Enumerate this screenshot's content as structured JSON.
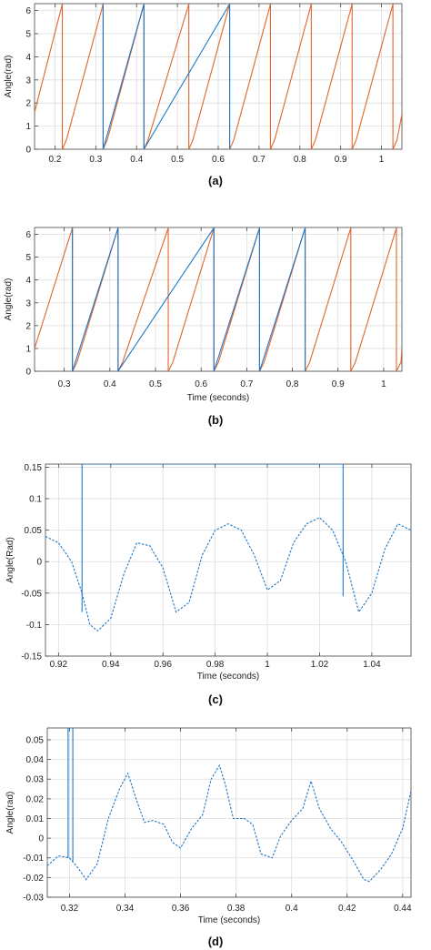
{
  "chart_data": [
    {
      "type": "line",
      "caption": "(a)",
      "xlabel": "",
      "ylabel": "Angle(rad)",
      "xlim": [
        0.15,
        1.05
      ],
      "ylim": [
        0,
        6.3
      ],
      "xticks": [
        0.2,
        0.3,
        0.4,
        0.5,
        0.6,
        0.7,
        0.8,
        0.9,
        1
      ],
      "xtick_labels": [
        "0.2",
        "0.3",
        "0.4",
        "0.5",
        "0.6",
        "0.7",
        "0.8",
        "0.9",
        "1"
      ],
      "yticks": [
        0,
        1,
        2,
        3,
        4,
        5,
        6
      ],
      "ytick_labels": [
        "0",
        "1",
        "2",
        "3",
        "4",
        "5",
        "6"
      ],
      "grid": true,
      "series": [
        {
          "color": "#e0652a",
          "style": "solid",
          "x": [
            0.15,
            0.218,
            0.218,
            0.228,
            0.228,
            0.318,
            0.318,
            0.328,
            0.328,
            0.418,
            0.418,
            0.428,
            0.428,
            0.528,
            0.528,
            0.538,
            0.538,
            0.628,
            0.628,
            0.638,
            0.638,
            0.728,
            0.728,
            0.738,
            0.738,
            0.828,
            0.828,
            0.838,
            0.838,
            0.928,
            0.928,
            0.938,
            0.938,
            1.028,
            1.028,
            1.038,
            1.038,
            1.05
          ],
          "y": [
            1.6,
            6.28,
            0,
            0.4,
            0.4,
            6.28,
            0,
            0.4,
            0.4,
            6.28,
            0,
            0.4,
            0.4,
            6.28,
            0,
            0.4,
            0.4,
            6.28,
            0,
            0.4,
            0.4,
            6.28,
            0,
            0.4,
            0.4,
            6.28,
            0,
            0.4,
            0.4,
            6.28,
            0,
            0.4,
            0.4,
            6.28,
            0,
            0.4,
            0.4,
            1.5
          ]
        },
        {
          "color": "#1f78c8",
          "style": "solid",
          "x": [
            0.318,
            0.318,
            0.418,
            0.418,
            0.628,
            0.628
          ],
          "y": [
            6.28,
            0,
            6.28,
            0,
            6.28,
            0
          ]
        }
      ]
    },
    {
      "type": "line",
      "caption": "(b)",
      "xlabel": "Time (seconds)",
      "ylabel": "Angle(rad)",
      "xlim": [
        0.235,
        1.04
      ],
      "ylim": [
        0,
        6.3
      ],
      "xticks": [
        0.3,
        0.4,
        0.5,
        0.6,
        0.7,
        0.8,
        0.9,
        1
      ],
      "xtick_labels": [
        "0.3",
        "0.4",
        "0.5",
        "0.6",
        "0.7",
        "0.8",
        "0.9",
        "1"
      ],
      "yticks": [
        0,
        1,
        2,
        3,
        4,
        5,
        6
      ],
      "ytick_labels": [
        "0",
        "1",
        "2",
        "3",
        "4",
        "5",
        "6"
      ],
      "grid": true,
      "series": [
        {
          "color": "#e0652a",
          "style": "solid",
          "x": [
            0.235,
            0.318,
            0.318,
            0.328,
            0.328,
            0.418,
            0.418,
            0.428,
            0.428,
            0.528,
            0.528,
            0.538,
            0.538,
            0.628,
            0.628,
            0.638,
            0.638,
            0.728,
            0.728,
            0.738,
            0.738,
            0.828,
            0.828,
            0.838,
            0.838,
            0.928,
            0.928,
            0.938,
            0.938,
            1.028,
            1.028,
            1.038,
            1.038,
            1.04
          ],
          "y": [
            1.0,
            6.28,
            0,
            0.4,
            0.4,
            6.28,
            0,
            0.4,
            0.4,
            6.28,
            0,
            0.4,
            0.4,
            6.28,
            0,
            0.4,
            0.4,
            6.28,
            0,
            0.4,
            0.4,
            6.28,
            0,
            0.4,
            0.4,
            6.28,
            0,
            0.4,
            0.4,
            6.28,
            0,
            0.4,
            0.4,
            1.0
          ]
        },
        {
          "color": "#1f78c8",
          "style": "solid",
          "x": [
            0.318,
            0.318,
            0.418,
            0.418,
            0.628,
            0.628,
            0.728,
            0.728,
            0.828,
            0.828
          ],
          "y": [
            6.28,
            0,
            6.28,
            0,
            6.28,
            0,
            6.28,
            0,
            6.28,
            0
          ]
        }
      ]
    },
    {
      "type": "line",
      "caption": "(c)",
      "xlabel": "Time (seconds)",
      "ylabel": "Angle(Rad)",
      "xlim": [
        0.915,
        1.055
      ],
      "ylim": [
        -0.15,
        0.155
      ],
      "xticks": [
        0.92,
        0.94,
        0.96,
        0.98,
        1,
        1.02,
        1.04
      ],
      "xtick_labels": [
        "0.92",
        "0.94",
        "0.96",
        "0.98",
        "1",
        "1.02",
        "1.04"
      ],
      "yticks": [
        -0.15,
        -0.1,
        -0.05,
        0,
        0.05,
        0.1,
        0.15
      ],
      "ytick_labels": [
        "-0.15",
        "-0.1",
        "-0.05",
        "0",
        "0.05",
        "0.1",
        "0.15"
      ],
      "grid": true,
      "series": [
        {
          "color": "#1f78c8",
          "style": "dashed",
          "x": [
            0.915,
            0.92,
            0.925,
            0.929,
            0.932,
            0.935,
            0.94,
            0.945,
            0.95,
            0.955,
            0.96,
            0.965,
            0.97,
            0.975,
            0.98,
            0.985,
            0.99,
            0.995,
            1.0,
            1.005,
            1.01,
            1.015,
            1.02,
            1.025,
            1.03,
            1.035,
            1.04,
            1.045,
            1.05,
            1.055
          ],
          "y": [
            0.04,
            0.03,
            0.0,
            -0.05,
            -0.1,
            -0.11,
            -0.09,
            -0.02,
            0.03,
            0.025,
            -0.01,
            -0.08,
            -0.065,
            0.01,
            0.05,
            0.06,
            0.05,
            0.01,
            -0.045,
            -0.03,
            0.03,
            0.06,
            0.07,
            0.05,
            0.0,
            -0.08,
            -0.05,
            0.02,
            0.06,
            0.05
          ]
        },
        {
          "color": "#1f78c8",
          "style": "solid",
          "x": [
            0.929,
            0.929,
            1.029,
            1.029
          ],
          "y": [
            -0.08,
            0.155,
            0.155,
            -0.055
          ]
        }
      ]
    },
    {
      "type": "line",
      "caption": "(d)",
      "xlabel": "Time (seconds)",
      "ylabel": "Angle(rad)",
      "xlim": [
        0.312,
        0.443
      ],
      "ylim": [
        -0.03,
        0.056
      ],
      "xticks": [
        0.32,
        0.34,
        0.36,
        0.38,
        0.4,
        0.42,
        0.44
      ],
      "xtick_labels": [
        "0.32",
        "0.34",
        "0.36",
        "0.38",
        "0.4",
        "0.42",
        "0.44"
      ],
      "yticks": [
        -0.03,
        -0.02,
        -0.01,
        0,
        0.01,
        0.02,
        0.03,
        0.04,
        0.05
      ],
      "ytick_labels": [
        "-0.03",
        "-0.02",
        "-0.01",
        "0",
        "0.01",
        "0.02",
        "0.03",
        "0.04",
        "0.05"
      ],
      "grid": true,
      "series": [
        {
          "color": "#1f78c8",
          "style": "dashed",
          "x": [
            0.312,
            0.316,
            0.32,
            0.323,
            0.326,
            0.33,
            0.334,
            0.338,
            0.341,
            0.344,
            0.347,
            0.35,
            0.354,
            0.357,
            0.36,
            0.364,
            0.368,
            0.371,
            0.374,
            0.376,
            0.379,
            0.383,
            0.386,
            0.389,
            0.393,
            0.396,
            0.4,
            0.404,
            0.407,
            0.41,
            0.414,
            0.418,
            0.422,
            0.426,
            0.428,
            0.432,
            0.436,
            0.44,
            0.443
          ],
          "y": [
            -0.014,
            -0.009,
            -0.01,
            -0.015,
            -0.021,
            -0.013,
            0.01,
            0.025,
            0.033,
            0.02,
            0.008,
            0.009,
            0.007,
            -0.002,
            -0.005,
            0.005,
            0.012,
            0.03,
            0.037,
            0.028,
            0.01,
            0.01,
            0.007,
            -0.008,
            -0.01,
            0.001,
            0.009,
            0.015,
            0.029,
            0.015,
            0.005,
            -0.002,
            -0.011,
            -0.021,
            -0.022,
            -0.016,
            -0.008,
            0.005,
            0.024
          ]
        },
        {
          "color": "#1f78c8",
          "style": "solid",
          "x": [
            0.3195,
            0.3195,
            0.3212,
            0.3212
          ],
          "y": [
            -0.01,
            0.056,
            0.056,
            -0.012
          ]
        }
      ]
    }
  ]
}
